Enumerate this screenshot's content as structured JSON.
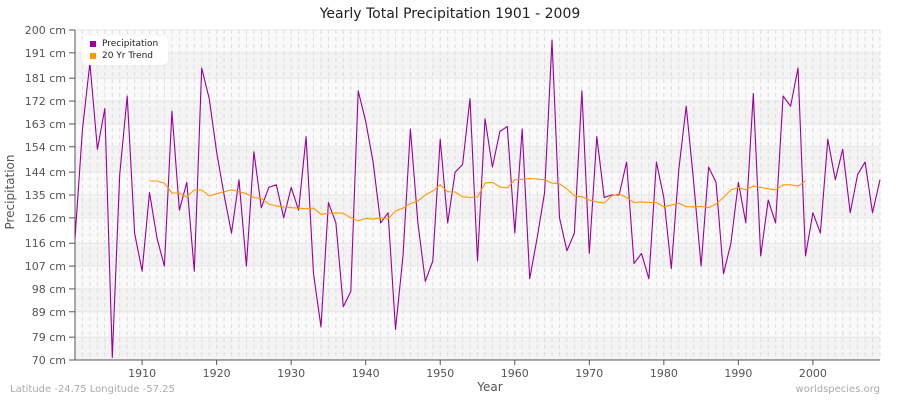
{
  "chart_data": {
    "type": "line",
    "title": "Yearly Total Precipitation 1901 - 2009",
    "xlabel": "Year",
    "ylabel": "Precipitation",
    "xlim": [
      1901,
      2009
    ],
    "ylim": [
      70,
      200
    ],
    "y_ticks": [
      70,
      79,
      89,
      98,
      107,
      116,
      126,
      135,
      144,
      154,
      163,
      172,
      181,
      191,
      200
    ],
    "y_tick_labels": [
      "70 cm",
      "79 cm",
      "89 cm",
      "98 cm",
      "107 cm",
      "116 cm",
      "126 cm",
      "135 cm",
      "144 cm",
      "154 cm",
      "163 cm",
      "172 cm",
      "181 cm",
      "191 cm",
      "200 cm"
    ],
    "x_ticks": [
      1910,
      1920,
      1930,
      1940,
      1950,
      1960,
      1970,
      1980,
      1990,
      2000
    ],
    "grid": true,
    "legend_position": "top-left",
    "series": [
      {
        "name": "Precipitation",
        "color": "#990099",
        "x_start": 1901,
        "values": [
          118,
          161,
          187,
          153,
          169,
          71,
          143,
          174,
          120,
          105,
          136,
          118,
          107,
          168,
          129,
          140,
          105,
          185,
          173,
          152,
          135,
          120,
          141,
          107,
          152,
          130,
          138,
          139,
          126,
          138,
          129,
          158,
          104,
          83,
          132,
          124,
          91,
          97,
          176,
          164,
          148,
          124,
          128,
          82,
          111,
          161,
          124,
          101,
          109,
          157,
          124,
          144,
          147,
          173,
          109,
          165,
          146,
          160,
          162,
          120,
          161,
          102,
          118,
          136,
          196,
          126,
          113,
          120,
          176,
          112,
          158,
          134,
          135,
          135,
          148,
          108,
          112,
          102,
          148,
          134,
          106,
          145,
          170,
          140,
          107,
          146,
          140,
          104,
          116,
          140,
          124,
          175,
          111,
          133,
          124,
          174,
          170,
          185,
          111,
          128,
          120,
          157,
          141,
          153,
          128,
          143,
          148,
          128,
          141
        ]
      },
      {
        "name": "20 Yr Trend",
        "color": "#ff9900",
        "x_start": 1911,
        "values": [
          140.5,
          140.5,
          139.7,
          135.8,
          135.8,
          134.2,
          137,
          137,
          134.6,
          135.5,
          136.3,
          137,
          136.3,
          135.5,
          134,
          133.7,
          131.4,
          130.7,
          130.2,
          130,
          129.8,
          129.6,
          129.8,
          127.4,
          127.8,
          128,
          127.8,
          126,
          124.8,
          125.8,
          125.5,
          126,
          125.6,
          128.7,
          129.8,
          131.6,
          132.6,
          135,
          136.6,
          139,
          136.3,
          136.2,
          134.3,
          134,
          134.3,
          139.7,
          140,
          138.2,
          137.8,
          141,
          141.2,
          141.5,
          141.3,
          141,
          139.7,
          139.4,
          137.4,
          134.7,
          134.3,
          133,
          132.3,
          131.8,
          134.6,
          135.5,
          134,
          132,
          132.3,
          132.1,
          132,
          130.4,
          131,
          131.8,
          130.4,
          130.3,
          130.5,
          130,
          131.5,
          134,
          137,
          138,
          137,
          138.5,
          138,
          137.5,
          137,
          139,
          139,
          138.5,
          140.5
        ]
      }
    ]
  },
  "legend": {
    "items": [
      {
        "label": "Precipitation",
        "color": "#990099"
      },
      {
        "label": "20 Yr Trend",
        "color": "#ff9900"
      }
    ]
  },
  "footer": {
    "coords": "Latitude -24.75 Longitude -57.25",
    "source": "worldspecies.org"
  }
}
